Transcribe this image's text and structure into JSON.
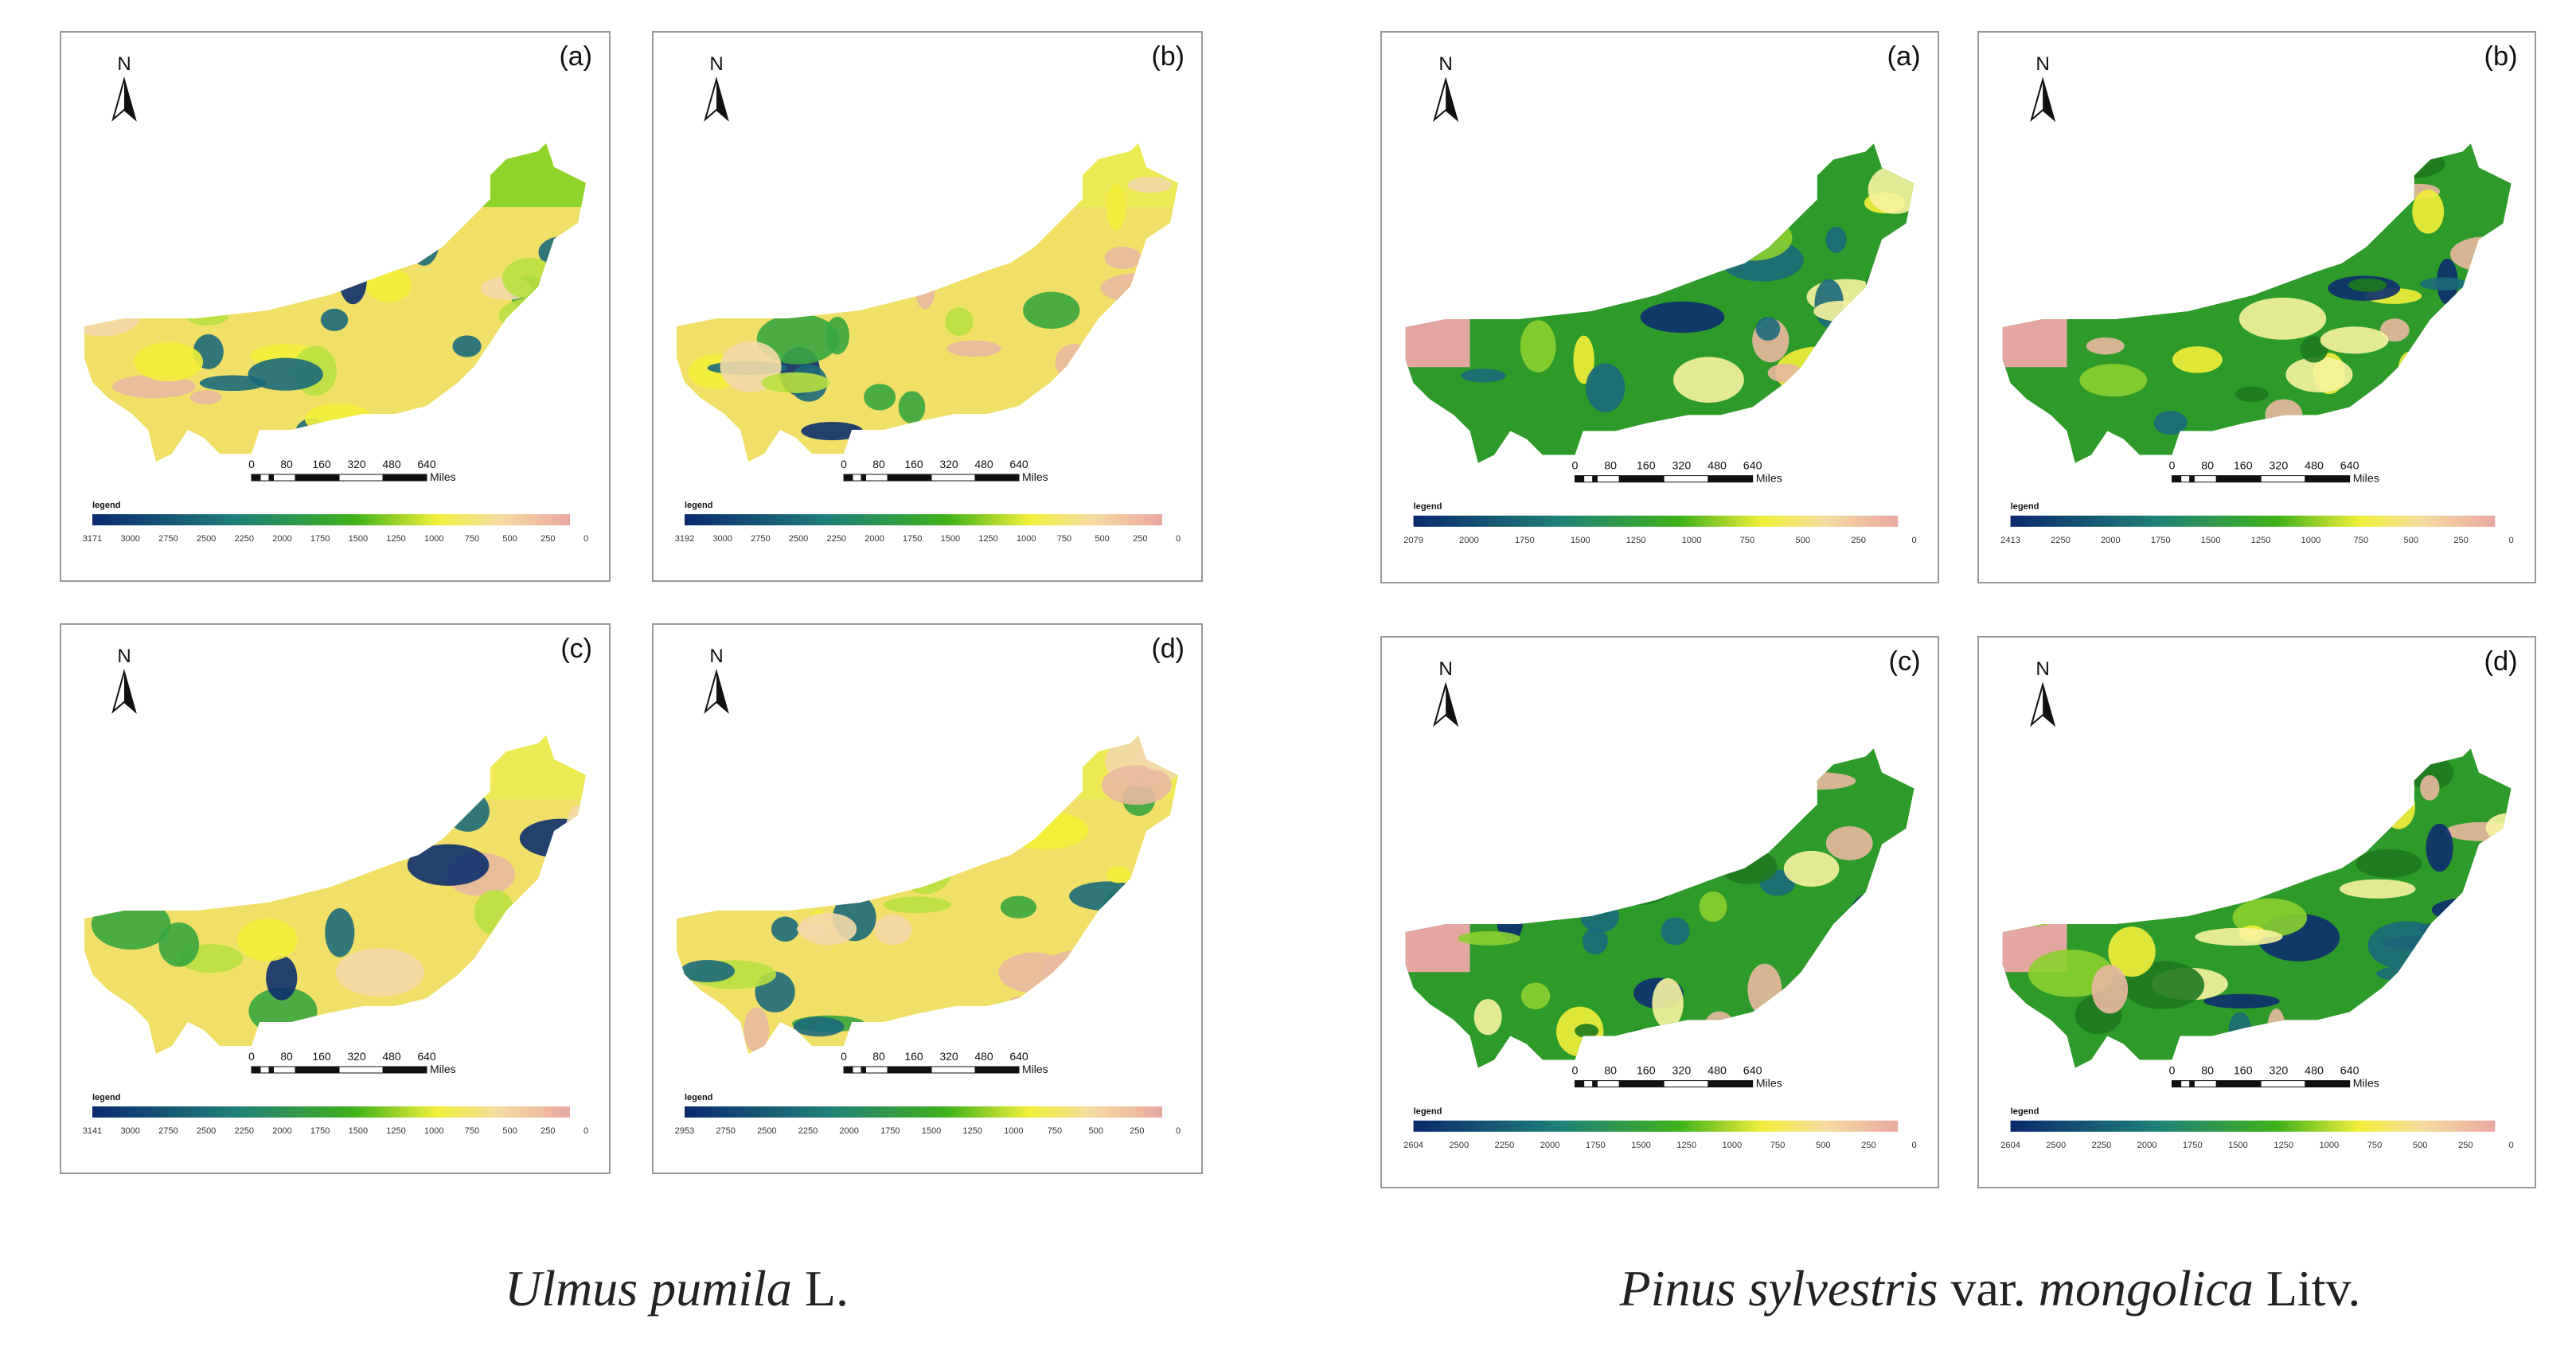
{
  "north": "N",
  "scale_labels": [
    "0",
    "80",
    "160",
    "320",
    "480",
    "640"
  ],
  "scale_unit": "Miles",
  "figures": [
    {
      "caption": {
        "parts": [
          {
            "text": "Ulmus pumila",
            "italic": true
          },
          {
            "text": " L.",
            "italic": false
          }
        ]
      },
      "panels": [
        {
          "label": "(a)",
          "legend_title": "legend",
          "legend_ticks": [
            "3171",
            "3000",
            "2750",
            "2500",
            "2250",
            "2000",
            "1750",
            "1500",
            "1250",
            "1000",
            "750",
            "500",
            "250",
            "0"
          ]
        },
        {
          "label": "(b)",
          "legend_title": "legend",
          "legend_ticks": [
            "3192",
            "3000",
            "2750",
            "2500",
            "2250",
            "2000",
            "1750",
            "1500",
            "1250",
            "1000",
            "750",
            "500",
            "250",
            "0"
          ]
        },
        {
          "label": "(c)",
          "legend_title": "legend",
          "legend_ticks": [
            "3141",
            "3000",
            "2750",
            "2500",
            "2250",
            "2000",
            "1750",
            "1500",
            "1250",
            "1000",
            "750",
            "500",
            "250",
            "0"
          ]
        },
        {
          "label": "(d)",
          "legend_title": "legend",
          "legend_ticks": [
            "2953",
            "2750",
            "2500",
            "2250",
            "2000",
            "1750",
            "1500",
            "1250",
            "1000",
            "750",
            "500",
            "250",
            "0"
          ]
        }
      ]
    },
    {
      "caption": {
        "parts": [
          {
            "text": "Pinus sylvestris",
            "italic": true
          },
          {
            "text": " var. ",
            "italic": false
          },
          {
            "text": "mongolica",
            "italic": true
          },
          {
            "text": " Litv.",
            "italic": false
          }
        ]
      },
      "panels": [
        {
          "label": "(a)",
          "legend_title": "legend",
          "legend_ticks": [
            "2079",
            "2000",
            "1750",
            "1500",
            "1250",
            "1000",
            "750",
            "500",
            "250",
            "0"
          ]
        },
        {
          "label": "(b)",
          "legend_title": "legend",
          "legend_ticks": [
            "2413",
            "2250",
            "2000",
            "1750",
            "1500",
            "1250",
            "1000",
            "750",
            "500",
            "250",
            "0"
          ]
        },
        {
          "label": "(c)",
          "legend_title": "legend",
          "legend_ticks": [
            "2604",
            "2500",
            "2250",
            "2000",
            "1750",
            "1500",
            "1250",
            "1000",
            "750",
            "500",
            "250",
            "0"
          ]
        },
        {
          "label": "(d)",
          "legend_title": "legend",
          "legend_ticks": [
            "2604",
            "2500",
            "2250",
            "2000",
            "1750",
            "1500",
            "1250",
            "1000",
            "750",
            "500",
            "250",
            "0"
          ]
        }
      ]
    }
  ]
}
